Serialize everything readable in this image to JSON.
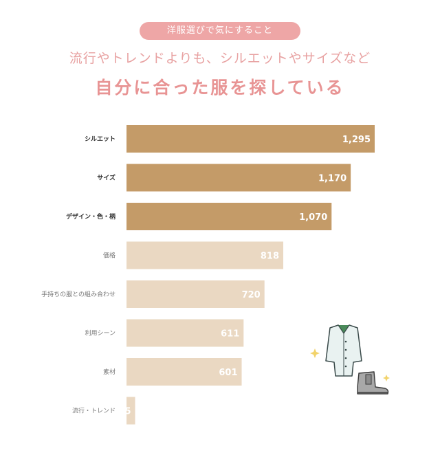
{
  "header": {
    "pill_text": "洋服選びで気にすること",
    "subtitle": "流行やトレンドよりも、シルエットやサイズなど",
    "headline": "自分に合った服を探している"
  },
  "colors": {
    "accent_pink": "#eea6a6",
    "bar_dark": "#c49b68",
    "bar_light": "#ead8c2",
    "label_dark": "#333333",
    "label_light": "#777777"
  },
  "icons": [
    "coat-illustration-icon",
    "boot-illustration-icon",
    "sparkle-icon"
  ],
  "chart_data": {
    "type": "bar",
    "orientation": "horizontal",
    "categories": [
      "シルエット",
      "サイズ",
      "デザイン・色・柄",
      "価格",
      "手持ちの服との組み合わせ",
      "利用シーン",
      "素材",
      "流行・トレンド"
    ],
    "values": [
      1295,
      1170,
      1070,
      818,
      720,
      611,
      601,
      45
    ],
    "value_labels": [
      "1,295",
      "1,170",
      "1,070",
      "818",
      "720",
      "611",
      "601",
      "45"
    ],
    "highlight_top": 3,
    "xlim": [
      0,
      1295
    ],
    "grid": false,
    "legend": "none"
  }
}
